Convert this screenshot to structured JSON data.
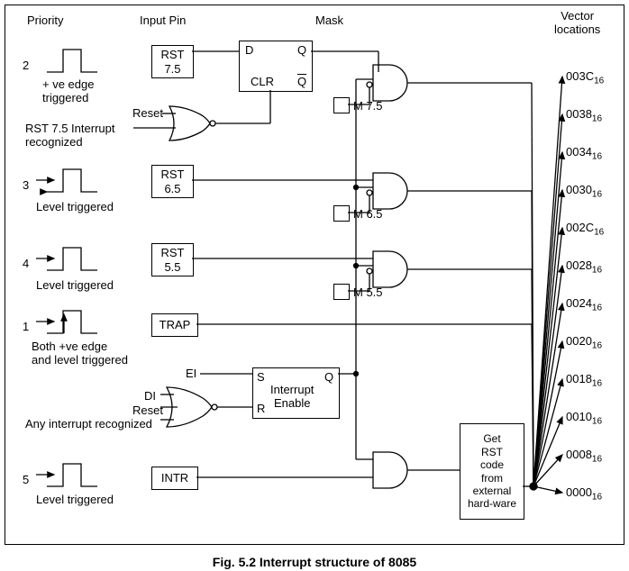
{
  "headers": {
    "priority": "Priority",
    "input_pin": "Input Pin",
    "mask": "Mask",
    "vector_locations": "Vector\nlocations"
  },
  "rows": {
    "r1": {
      "priority": "2",
      "pin": "RST\n7.5",
      "trigger": "+ ve edge\ntriggered",
      "mask": "M 7.5"
    },
    "r2": {
      "priority": "3",
      "pin": "RST\n6.5",
      "trigger": "Level triggered",
      "mask": "M 6.5"
    },
    "r3": {
      "priority": "4",
      "pin": "RST\n5.5",
      "trigger": "Level triggered",
      "mask": "M 5.5"
    },
    "r4": {
      "priority": "1",
      "pin": "TRAP",
      "trigger": "Both +ve edge\nand level triggered"
    },
    "r5": {
      "priority": "5",
      "pin": "INTR",
      "trigger": "Level triggered"
    }
  },
  "labels": {
    "reset": "Reset",
    "rst75_int": "RST 7.5 Interrupt\nrecognized",
    "ei": "EI",
    "di": "DI",
    "any_int": "Any interrupt recognized",
    "interrupt_enable": "Interrupt\nEnable",
    "get_rst": "Get\nRST\ncode\nfrom\nexternal\nhard-ware",
    "ff_d": "D",
    "ff_q": "Q",
    "ff_qb": "Q",
    "ff_clr": "CLR",
    "ff_s": "S",
    "ff_r": "R"
  },
  "vectors": [
    "003C",
    "0038",
    "0034",
    "0030",
    "002C",
    "0028",
    "0024",
    "0020",
    "0018",
    "0010",
    "0008",
    "0000"
  ],
  "vector_sub": "16",
  "caption": "Fig. 5.2 Interrupt structure of 8085",
  "style": {
    "stroke": "#000",
    "stroke_width": 1.3,
    "font_size": 13
  }
}
